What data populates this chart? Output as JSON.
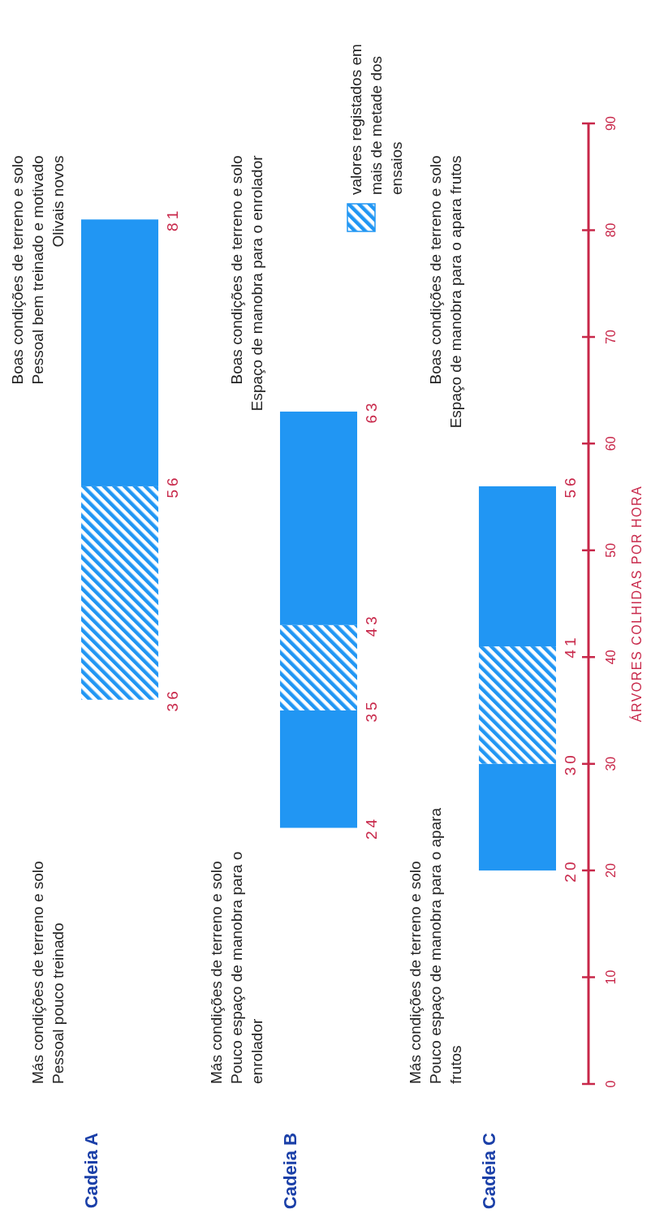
{
  "chart_data": {
    "type": "bar",
    "categories": [
      "Cadeia A",
      "Cadeia B",
      "Cadeia C"
    ],
    "series": [
      {
        "color": "#2196f3",
        "base": [
          null,
          24,
          20
        ],
        "values": [
          null,
          11,
          10
        ]
      },
      {
        "name": "valores registados em mais de metade dos ensaios",
        "color": "#2196f3",
        "base": [
          36,
          35,
          30
        ],
        "values": [
          20,
          8,
          11
        ]
      },
      {
        "color": "#2196f3",
        "base": [
          56,
          43,
          41
        ],
        "values": [
          25,
          20,
          15
        ]
      }
    ],
    "ylim": [
      0,
      90
    ],
    "yticks": [
      0,
      10,
      20,
      30,
      40,
      50,
      60,
      70,
      80,
      90
    ],
    "ylabel": "ÁRVORES COLHIDAS POR HORA",
    "legend": "top right",
    "annotations": [
      "Más condições de terreno e solo\nPessoal pouco treinado",
      "Boas condições de terreno e solo\nPessoal bem treinado e motivado\nOlivais novos",
      "Más condições de terreno e solo\nPouco espaço de manobra para o\nenrolador",
      "Boas condições de terreno e solo\nEspaço de manobra para o enrolador",
      "Más condições de terreno e solo\nPouco espaço de manobra para o apara\nfrutos",
      "Boas condições de terreno e solo\nEspaço de manobra para o apara frutos",
      "36",
      "56",
      "81",
      "24",
      "35",
      "43",
      "63",
      "20",
      "30",
      "41",
      "56"
    ]
  }
}
